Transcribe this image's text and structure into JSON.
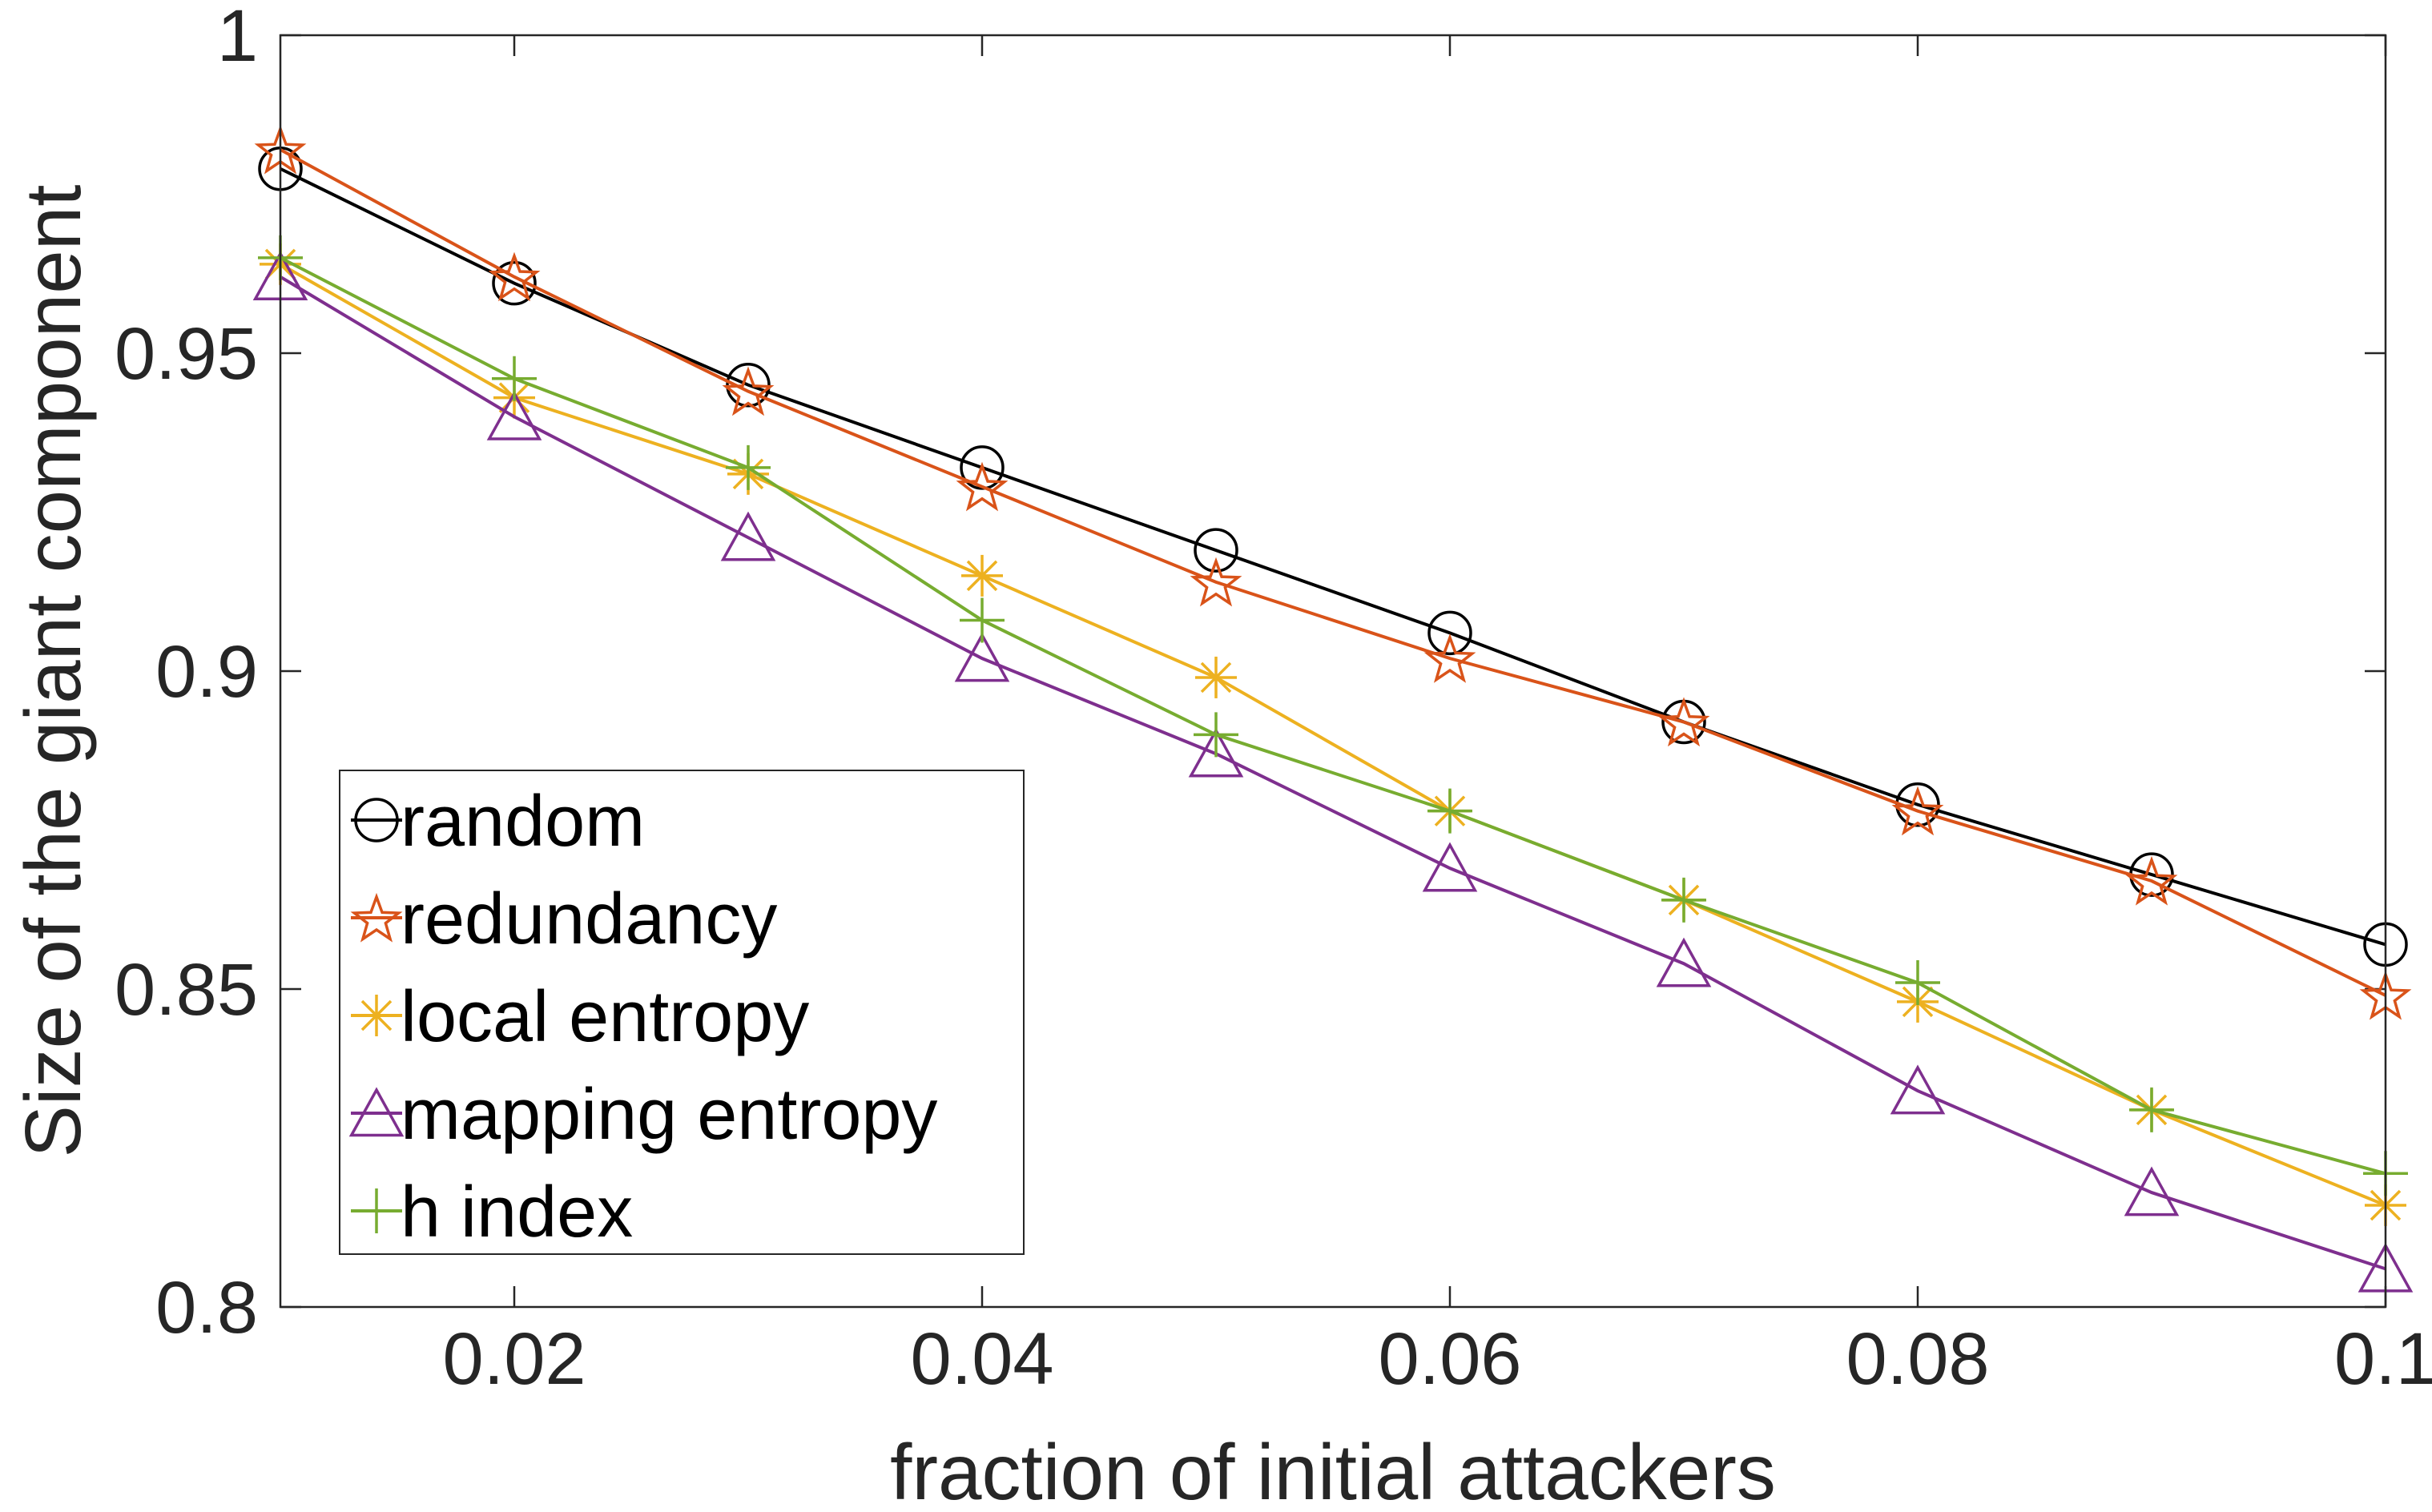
{
  "chart_data": {
    "type": "line",
    "title": "",
    "xlabel": "fraction of initial attackers",
    "ylabel": "Size of the giant component",
    "xlim": [
      0.01,
      0.1
    ],
    "ylim": [
      0.8,
      1
    ],
    "x": [
      0.01,
      0.02,
      0.03,
      0.04,
      0.05,
      0.06,
      0.07,
      0.08,
      0.09,
      0.1
    ],
    "xticks": [
      {
        "value": 0.02,
        "label": "0.02"
      },
      {
        "value": 0.04,
        "label": "0.04"
      },
      {
        "value": 0.06,
        "label": "0.06"
      },
      {
        "value": 0.08,
        "label": "0.08"
      },
      {
        "value": 0.1,
        "label": "0.1"
      }
    ],
    "yticks": [
      {
        "value": 0.8,
        "label": "0.8"
      },
      {
        "value": 0.85,
        "label": "0.85"
      },
      {
        "value": 0.9,
        "label": "0.9"
      },
      {
        "value": 0.95,
        "label": "0.95"
      },
      {
        "value": 1,
        "label": "1"
      }
    ],
    "grid": false,
    "box": true,
    "legend_position": "bottom-left",
    "series": [
      {
        "name": "random",
        "color": "#000000",
        "marker": "circle",
        "values": [
          0.979,
          0.961,
          0.945,
          0.932,
          0.919,
          0.906,
          0.892,
          0.879,
          0.868,
          0.857
        ]
      },
      {
        "name": "redundancy",
        "color": "#D95319",
        "marker": "pentagram",
        "values": [
          0.982,
          0.962,
          0.944,
          0.929,
          0.914,
          0.902,
          0.892,
          0.878,
          0.867,
          0.849
        ]
      },
      {
        "name": "local entropy",
        "color": "#EDB120",
        "marker": "asterisk",
        "values": [
          0.964,
          0.943,
          0.931,
          0.915,
          0.899,
          0.878,
          0.864,
          0.848,
          0.831,
          0.816
        ]
      },
      {
        "name": "mapping entropy",
        "color": "#7E2F8E",
        "marker": "triangle",
        "values": [
          0.962,
          0.94,
          0.921,
          0.902,
          0.887,
          0.869,
          0.854,
          0.834,
          0.818,
          0.806
        ]
      },
      {
        "name": "h index",
        "color": "#77AC30",
        "marker": "plus",
        "values": [
          0.965,
          0.946,
          0.932,
          0.908,
          0.89,
          0.878,
          0.864,
          0.851,
          0.831,
          0.821
        ]
      }
    ]
  }
}
